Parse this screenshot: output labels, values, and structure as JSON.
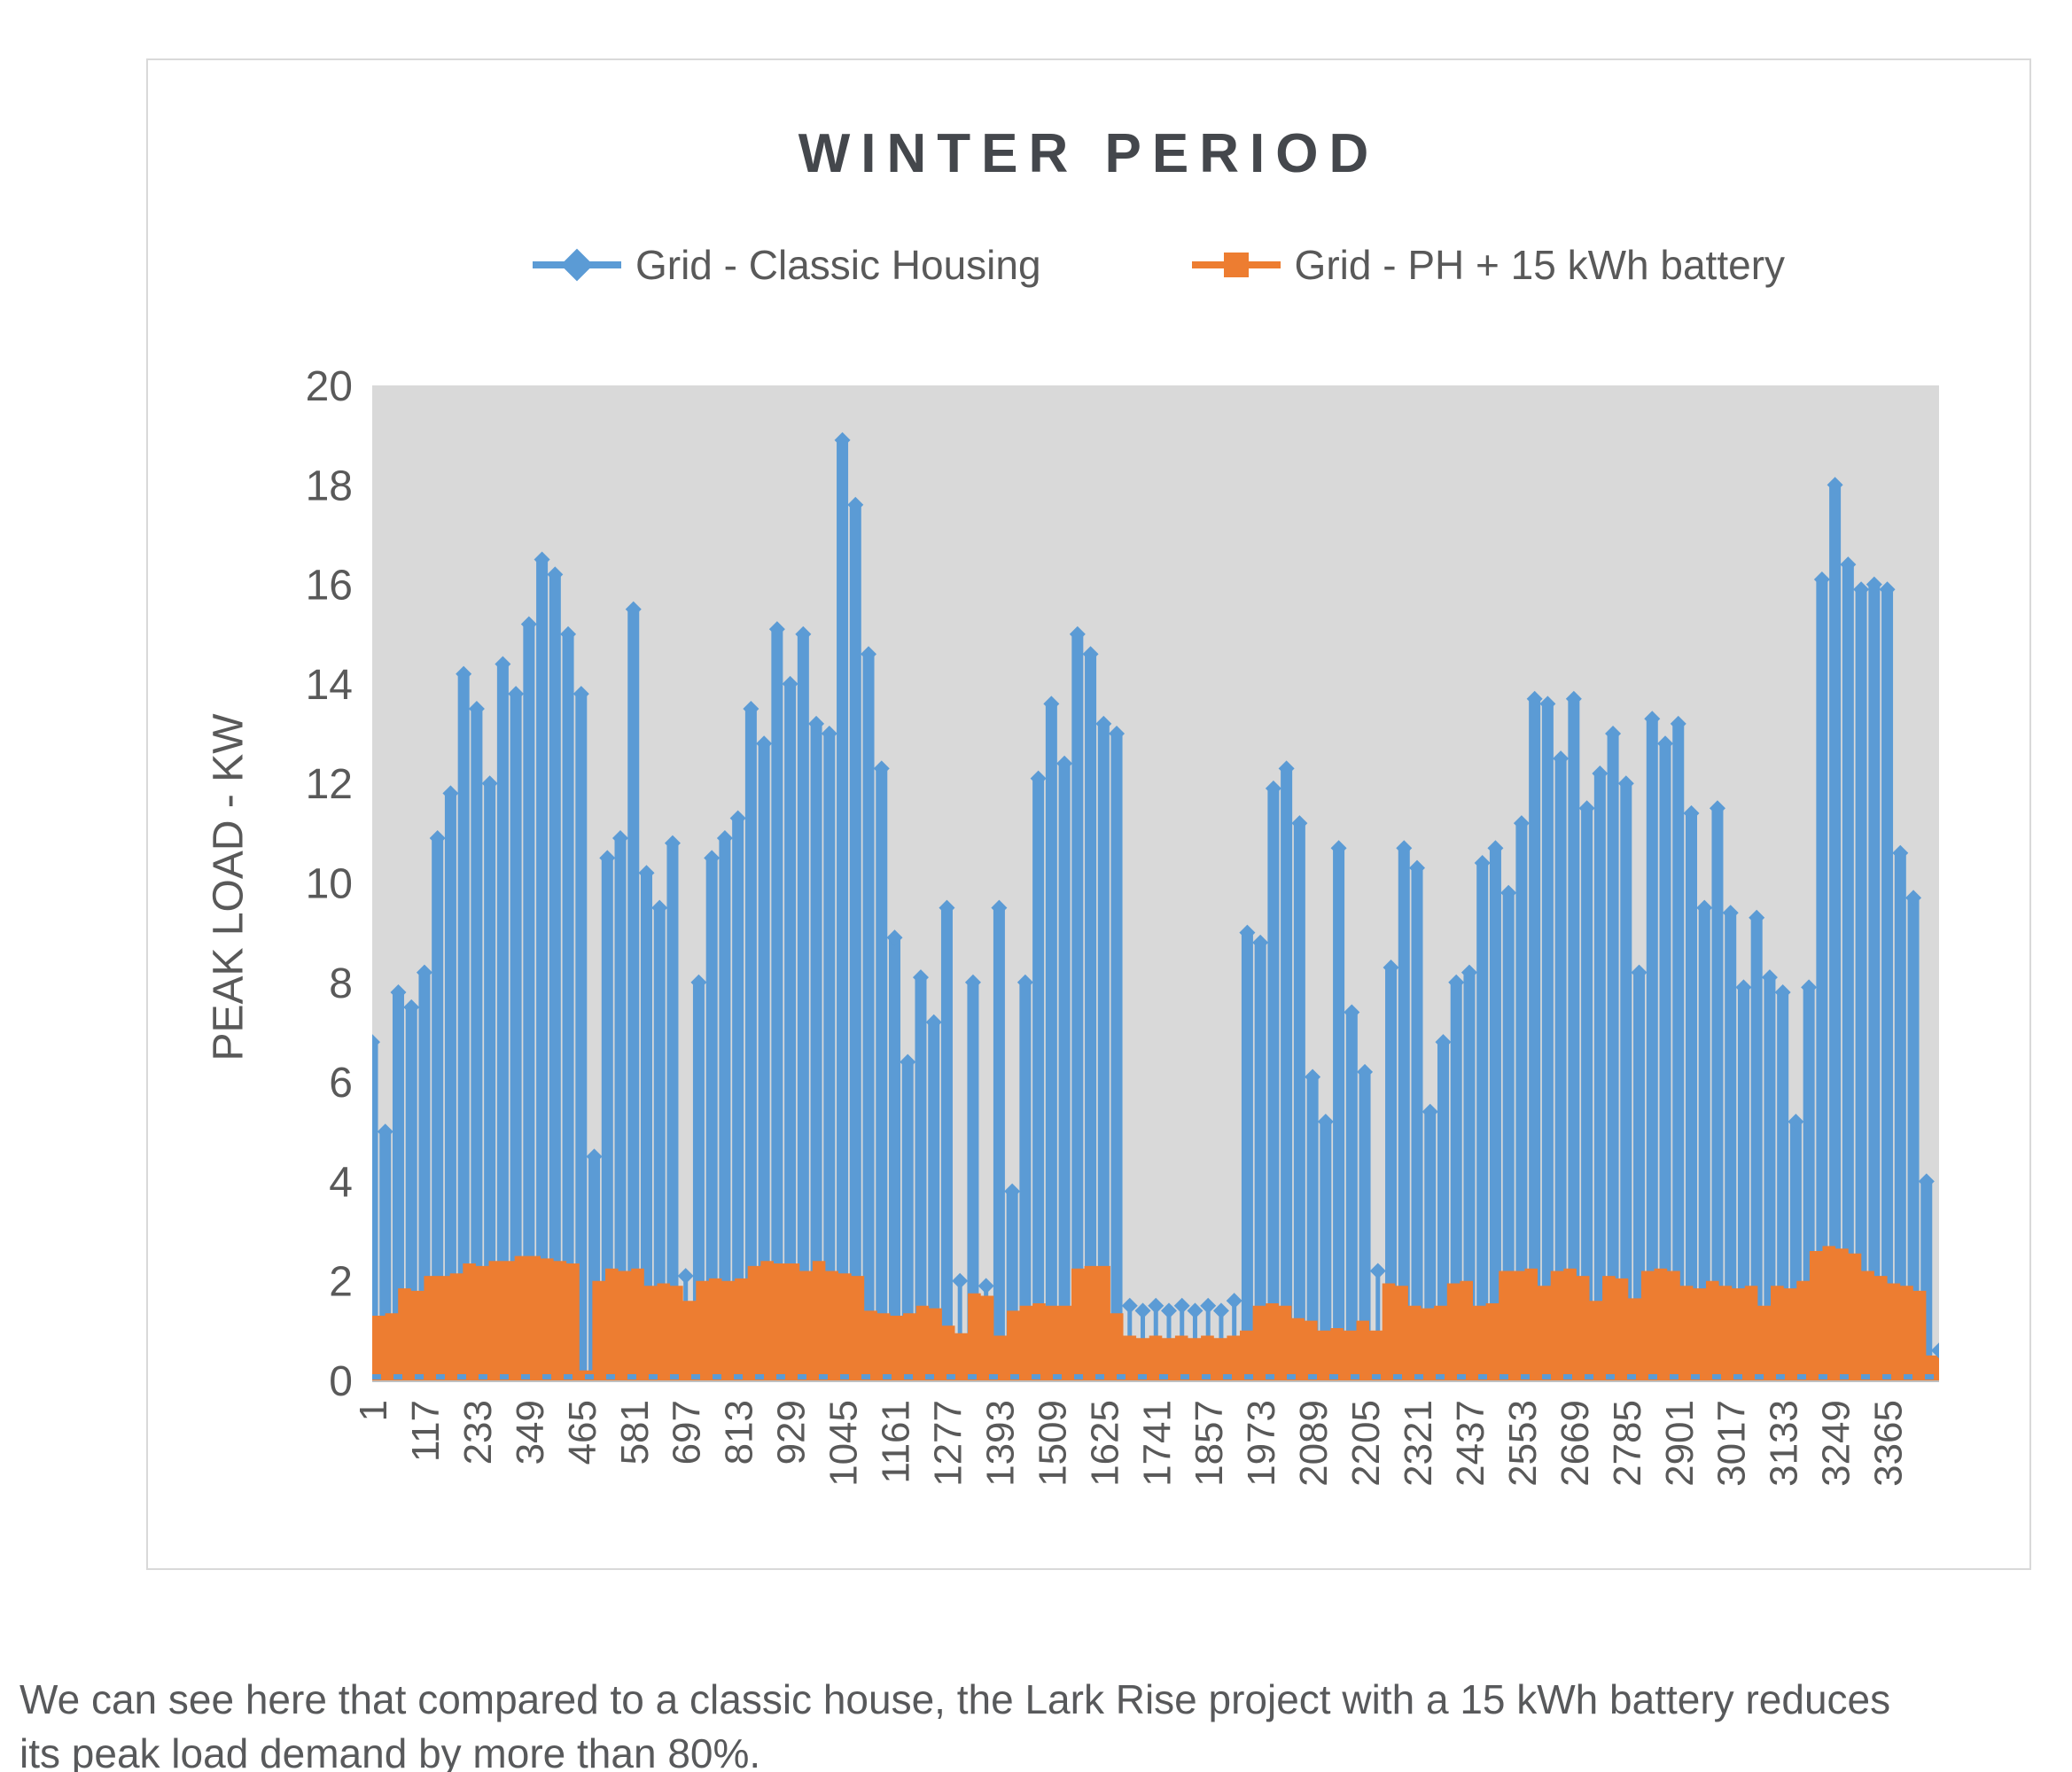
{
  "colors": {
    "blue_series": "#5b9bd5",
    "orange_series": "#ed7d31",
    "plot_background": "#d9d9d9",
    "axis_text": "#595959",
    "title_text": "#44474c",
    "caption_text": "#58595b",
    "axis_line": "#bfbfbf"
  },
  "caption": {
    "line1": "We can see here that compared to a classic house, the Lark Rise project with a 15 kWh battery reduces",
    "line2": "its peak load demand by more than 80%."
  },
  "chart_data": {
    "type": "line",
    "title": "WINTER PERIOD",
    "xlabel": "",
    "ylabel": "PEAK LOAD - KW",
    "ylim": [
      0,
      20
    ],
    "yticks": [
      0,
      2,
      4,
      6,
      8,
      10,
      12,
      14,
      16,
      18,
      20
    ],
    "xticks": [
      "1",
      "117",
      "233",
      "349",
      "465",
      "581",
      "697",
      "813",
      "929",
      "1045",
      "1161",
      "1277",
      "1393",
      "1509",
      "1625",
      "1741",
      "1857",
      "1973",
      "2089",
      "2205",
      "2321",
      "2437",
      "2553",
      "2669",
      "2785",
      "2901",
      "3017",
      "3133",
      "3249",
      "3365"
    ],
    "x_range": [
      1,
      3480
    ],
    "x_tick_step": 116,
    "grid": false,
    "legend_position": "top",
    "plot_background": "#d9d9d9",
    "sampling_note": "Original series has ~3480 half-hourly points; values below are peak-envelope samples taken every 29 steps.",
    "x": [
      1,
      30,
      59,
      88,
      117,
      146,
      175,
      204,
      233,
      262,
      291,
      320,
      349,
      378,
      407,
      436,
      465,
      494,
      523,
      552,
      581,
      610,
      639,
      668,
      697,
      726,
      755,
      784,
      813,
      842,
      871,
      900,
      929,
      958,
      987,
      1016,
      1045,
      1074,
      1103,
      1132,
      1161,
      1190,
      1219,
      1248,
      1277,
      1306,
      1335,
      1364,
      1393,
      1422,
      1451,
      1480,
      1509,
      1538,
      1567,
      1596,
      1625,
      1654,
      1683,
      1712,
      1741,
      1770,
      1799,
      1828,
      1857,
      1886,
      1915,
      1944,
      1973,
      2002,
      2031,
      2060,
      2089,
      2118,
      2147,
      2176,
      2205,
      2234,
      2263,
      2292,
      2321,
      2350,
      2379,
      2408,
      2437,
      2466,
      2495,
      2524,
      2553,
      2582,
      2611,
      2640,
      2669,
      2698,
      2727,
      2756,
      2785,
      2814,
      2843,
      2872,
      2901,
      2930,
      2959,
      2988,
      3017,
      3046,
      3075,
      3104,
      3133,
      3162,
      3191,
      3220,
      3249,
      3278,
      3307,
      3336,
      3365,
      3394,
      3423,
      3452,
      3480
    ],
    "series": [
      {
        "name": "Grid - Classic Housing",
        "color": "#5b9bd5",
        "marker": "diamond",
        "values": [
          6.8,
          5.0,
          7.8,
          7.5,
          8.2,
          10.9,
          11.8,
          14.2,
          13.5,
          12.0,
          14.4,
          13.8,
          15.2,
          16.5,
          16.2,
          15.0,
          13.8,
          4.5,
          10.5,
          10.9,
          15.5,
          10.2,
          9.5,
          10.8,
          2.1,
          8.0,
          10.5,
          10.9,
          11.3,
          13.5,
          12.8,
          15.1,
          14.0,
          15.0,
          13.2,
          13.0,
          18.9,
          17.6,
          14.6,
          12.3,
          8.9,
          6.4,
          8.1,
          7.2,
          9.5,
          2.0,
          8.0,
          1.9,
          9.5,
          3.8,
          8.0,
          12.1,
          13.6,
          12.4,
          15.0,
          14.6,
          13.2,
          13.0,
          1.5,
          1.4,
          1.5,
          1.4,
          1.5,
          1.4,
          1.5,
          1.4,
          1.6,
          9.0,
          8.8,
          11.9,
          12.3,
          11.2,
          6.1,
          5.2,
          10.7,
          7.4,
          6.2,
          2.2,
          8.3,
          10.7,
          10.3,
          5.4,
          6.8,
          8.0,
          8.2,
          10.4,
          10.7,
          9.8,
          11.2,
          13.7,
          13.6,
          12.5,
          13.7,
          11.5,
          12.2,
          13.0,
          12.0,
          8.2,
          13.3,
          12.8,
          13.2,
          11.4,
          9.5,
          11.5,
          9.4,
          7.9,
          9.3,
          8.1,
          7.8,
          5.2,
          7.9,
          16.1,
          18.0,
          16.4,
          15.9,
          16.0,
          15.9,
          10.6,
          9.7,
          4.0,
          0.6
        ]
      },
      {
        "name": "Grid - PH + 15 kWh battery",
        "color": "#ed7d31",
        "marker": "square",
        "values": [
          1.3,
          1.35,
          1.85,
          1.8,
          2.1,
          2.1,
          2.15,
          2.35,
          2.3,
          2.4,
          2.4,
          2.5,
          2.5,
          2.45,
          2.4,
          2.35,
          0.2,
          2.0,
          2.25,
          2.2,
          2.25,
          1.9,
          1.95,
          1.9,
          1.6,
          2.0,
          2.05,
          2.0,
          2.05,
          2.3,
          2.4,
          2.35,
          2.35,
          2.2,
          2.4,
          2.2,
          2.15,
          2.1,
          1.4,
          1.35,
          1.3,
          1.35,
          1.5,
          1.45,
          1.1,
          0.95,
          1.75,
          1.7,
          0.9,
          1.4,
          1.5,
          1.55,
          1.5,
          1.5,
          2.25,
          2.3,
          2.3,
          1.35,
          0.9,
          0.85,
          0.9,
          0.85,
          0.9,
          0.85,
          0.9,
          0.85,
          0.9,
          1.0,
          1.5,
          1.55,
          1.5,
          1.25,
          1.2,
          1.0,
          1.05,
          1.0,
          1.2,
          1.0,
          1.95,
          1.9,
          1.5,
          1.45,
          1.5,
          1.95,
          2.0,
          1.5,
          1.55,
          2.2,
          2.2,
          2.25,
          1.9,
          2.2,
          2.25,
          2.1,
          1.6,
          2.1,
          2.05,
          1.65,
          2.2,
          2.25,
          2.2,
          1.9,
          1.85,
          2.0,
          1.9,
          1.85,
          1.9,
          1.5,
          1.9,
          1.85,
          2.0,
          2.6,
          2.7,
          2.65,
          2.55,
          2.2,
          2.1,
          1.95,
          1.9,
          1.8,
          0.5
        ]
      }
    ]
  }
}
